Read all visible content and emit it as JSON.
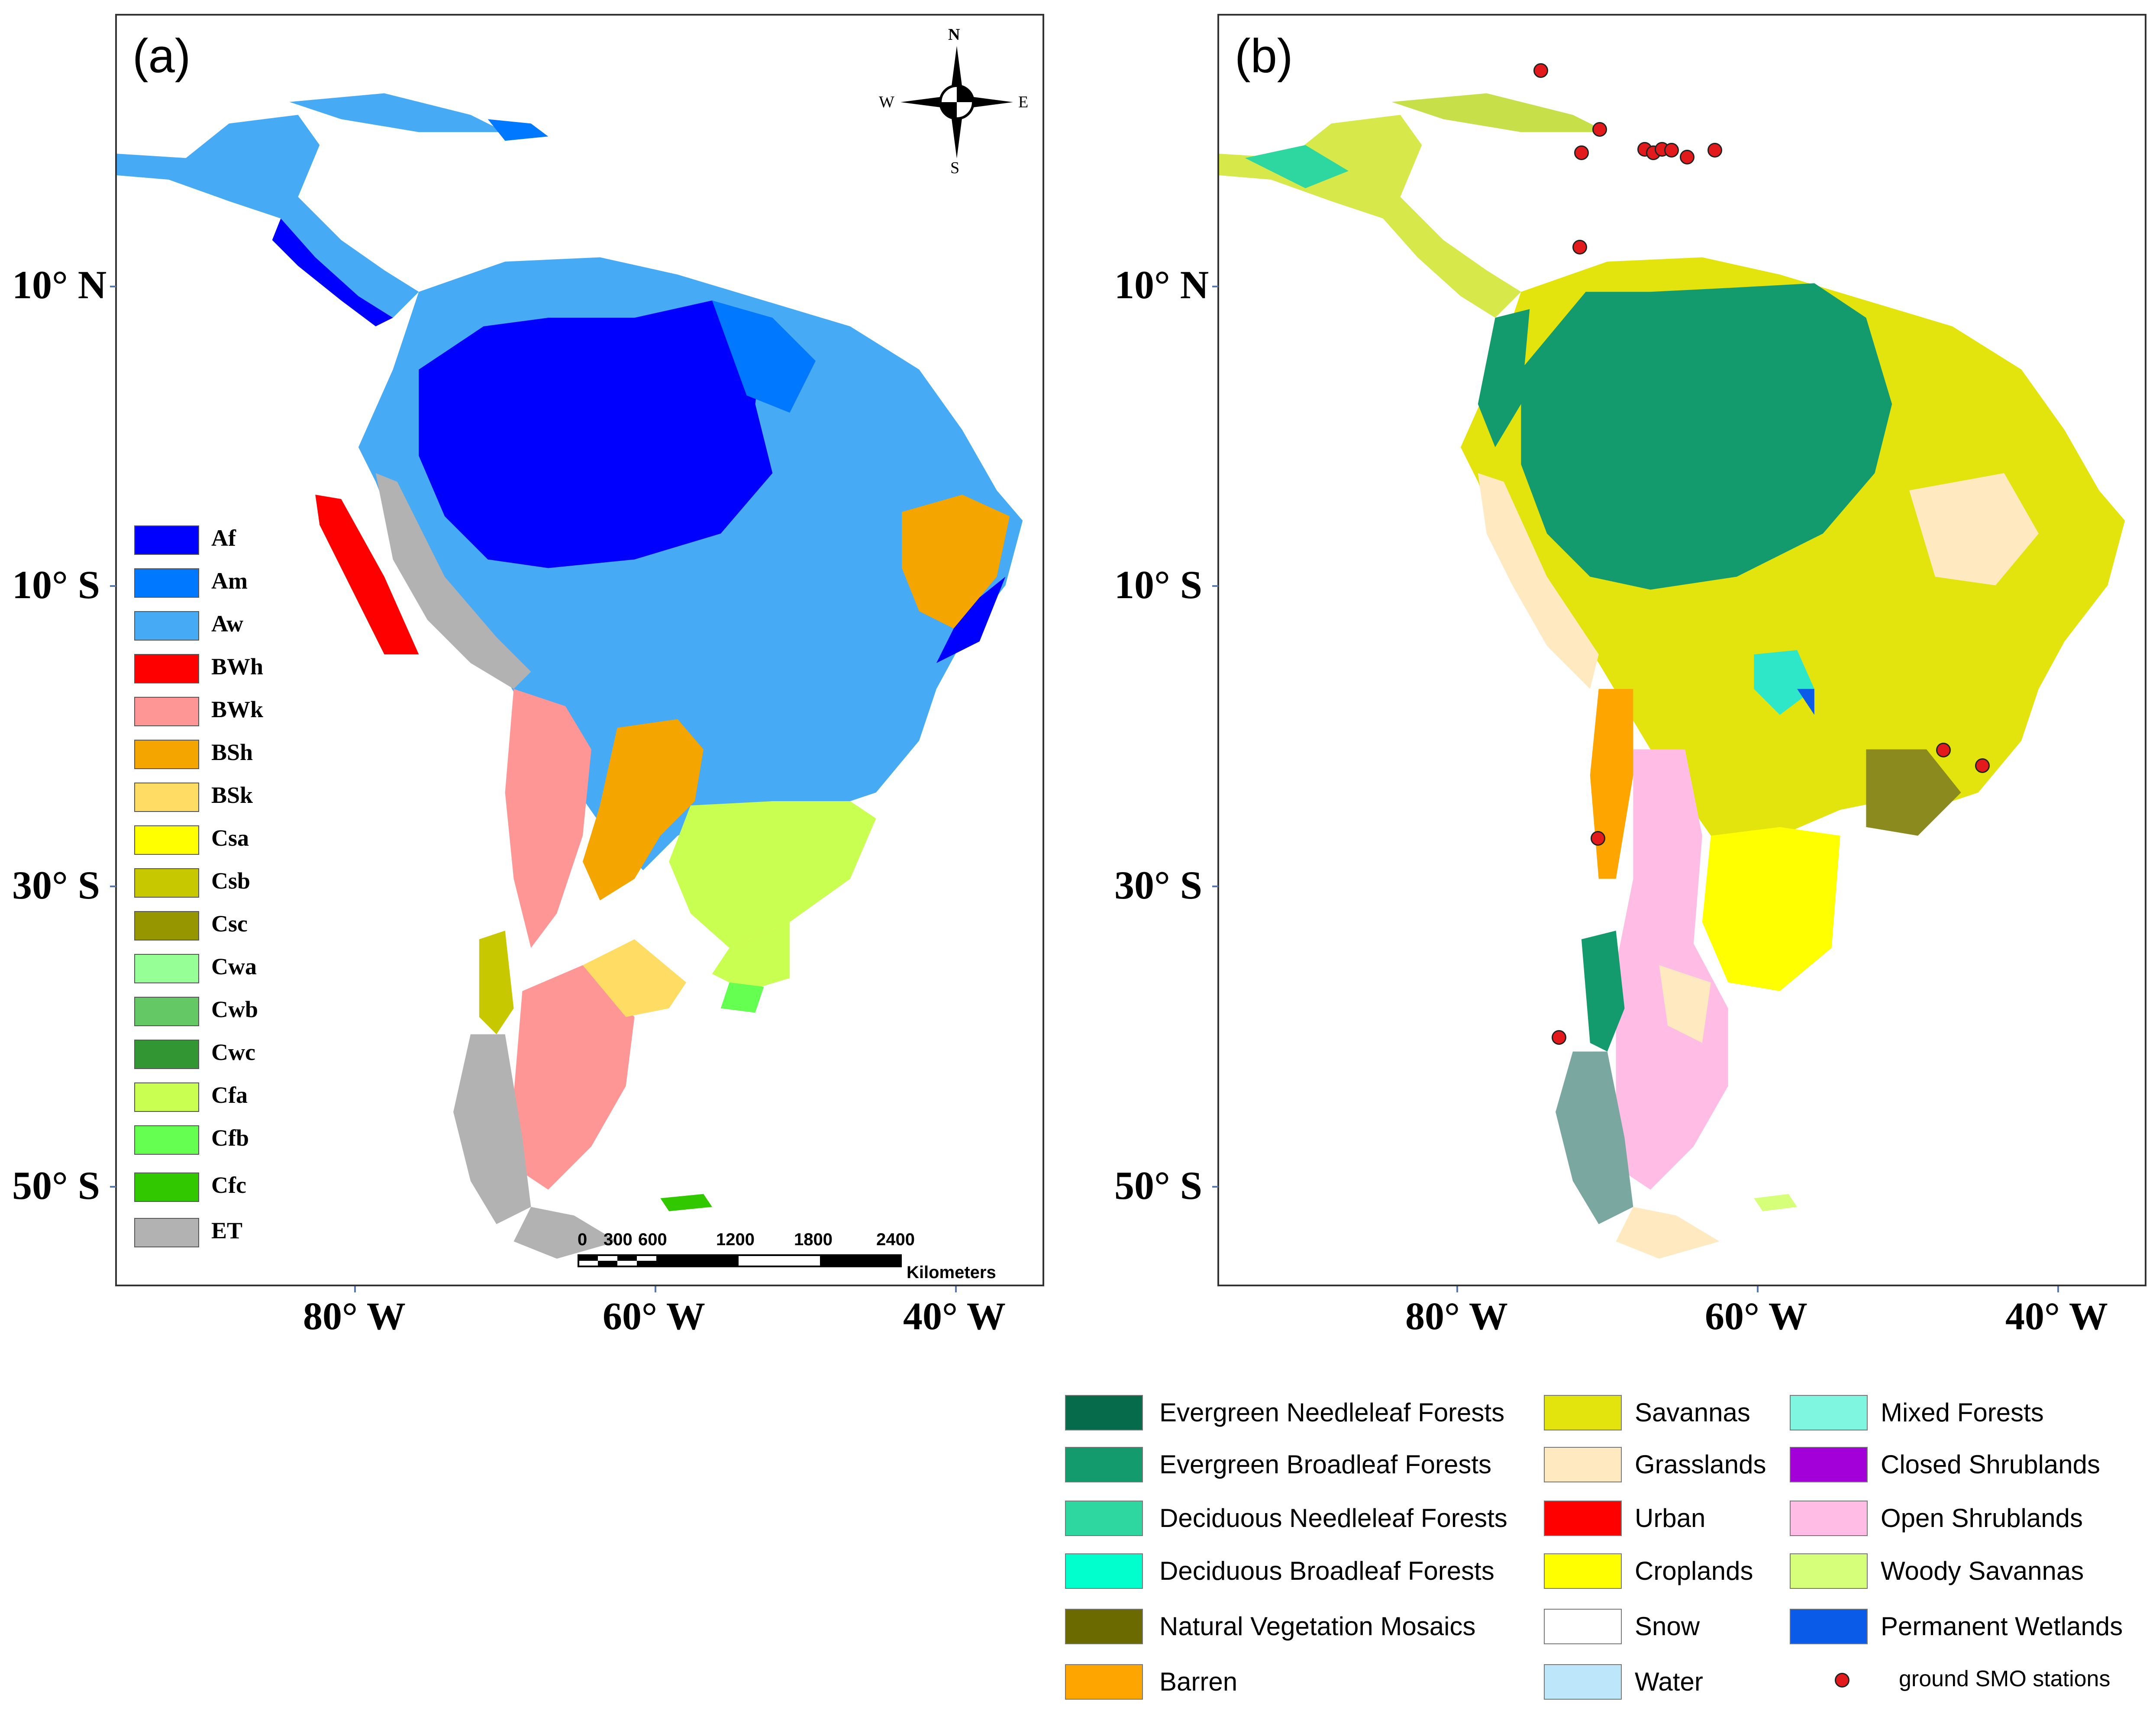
{
  "panel_a": {
    "label": "(a)",
    "latitudes": [
      "10° N",
      "10° S",
      "30° S",
      "50° S"
    ],
    "longitudes": [
      "80° W",
      "60° W",
      "40° W"
    ],
    "legend": [
      {
        "code": "Af",
        "color": "#0000ff"
      },
      {
        "code": "Am",
        "color": "#0078ff"
      },
      {
        "code": "Aw",
        "color": "#46aaf5"
      },
      {
        "code": "BWh",
        "color": "#ff0000"
      },
      {
        "code": "BWk",
        "color": "#ff9696"
      },
      {
        "code": "BSh",
        "color": "#f5a500"
      },
      {
        "code": "BSk",
        "color": "#ffdc64"
      },
      {
        "code": "Csa",
        "color": "#ffff00"
      },
      {
        "code": "Csb",
        "color": "#c8c800"
      },
      {
        "code": "Csc",
        "color": "#969600"
      },
      {
        "code": "Cwa",
        "color": "#96ff96"
      },
      {
        "code": "Cwb",
        "color": "#64c864"
      },
      {
        "code": "Cwc",
        "color": "#329632"
      },
      {
        "code": "Cfa",
        "color": "#c8ff50"
      },
      {
        "code": "Cfb",
        "color": "#64ff50"
      },
      {
        "code": "Cfc",
        "color": "#32c800"
      },
      {
        "code": "ET",
        "color": "#b2b2b2"
      }
    ],
    "compass": {
      "n": "N",
      "s": "S",
      "e": "E",
      "w": "W"
    },
    "scale_bar": {
      "ticks": [
        "0",
        "300",
        "600",
        "1200",
        "1800",
        "2400"
      ],
      "unit": "Kilometers"
    }
  },
  "panel_b": {
    "label": "(b)",
    "latitudes": [
      "10° N",
      "10° S",
      "30° S",
      "50° S"
    ],
    "longitudes": [
      "80° W",
      "60° W",
      "40° W"
    ],
    "legend": [
      {
        "label": "Evergreen Needleleaf Forests",
        "color": "#056b4a"
      },
      {
        "label": "Evergreen Broadleaf Forests",
        "color": "#139b6e"
      },
      {
        "label": "Deciduous Needleleaf Forests",
        "color": "#2ed6a0"
      },
      {
        "label": "Deciduous Broadleaf Forests",
        "color": "#00ffcc"
      },
      {
        "label": "Natural Vegetation Mosaics",
        "color": "#6b6a00"
      },
      {
        "label": "Barren",
        "color": "#ffa500"
      },
      {
        "label": "Savannas",
        "color": "#e3e30e"
      },
      {
        "label": "Grasslands",
        "color": "#ffe9c0"
      },
      {
        "label": "Urban",
        "color": "#ff0000"
      },
      {
        "label": "Croplands",
        "color": "#ffff00"
      },
      {
        "label": "Snow",
        "color": "#ffffff"
      },
      {
        "label": "Water",
        "color": "#bde6fa"
      },
      {
        "label": "Mixed Forests",
        "color": "#7ff6e0"
      },
      {
        "label": "Closed Shrublands",
        "color": "#a300d9"
      },
      {
        "label": "Open Shrublands",
        "color": "#ffbde6"
      },
      {
        "label": "Woody Savannas",
        "color": "#d6ff7a"
      },
      {
        "label": "Permanent Wetlands",
        "color": "#0a5be8"
      },
      {
        "label": "ground SMO stations",
        "color": "#e31a1c"
      }
    ]
  }
}
